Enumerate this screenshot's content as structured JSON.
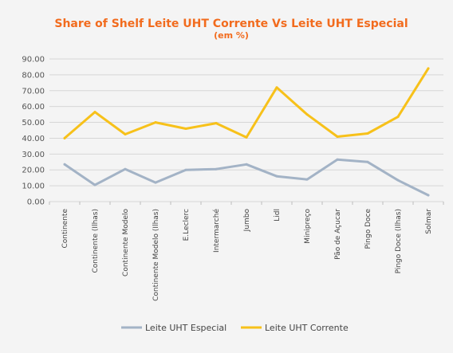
{
  "chart_data": {
    "type": "line",
    "title": "Share of Shelf Leite UHT Corrente Vs Leite UHT Especial",
    "subtitle": "(em %)",
    "xlabel": "",
    "ylabel": "",
    "ylim": [
      0,
      90
    ],
    "yticks": [
      "0.00",
      "10.00",
      "20.00",
      "30.00",
      "40.00",
      "50.00",
      "60.00",
      "70.00",
      "80.00",
      "90.00"
    ],
    "grid": true,
    "legend_position": "bottom",
    "categories": [
      "Continente",
      "Continente (Ilhas)",
      "Continente Modelo",
      "Continente Modelo (Ilhas)",
      "E.Leclerc",
      "Intermarché",
      "Jumbo",
      "Lidl",
      "Minipreço",
      "Pão de Açucar",
      "Pingo Doce",
      "Pingo Doce (Ilhas)",
      "Solmar"
    ],
    "series": [
      {
        "name": "Leite UHT Especial",
        "color": "#a3b3c6",
        "values": [
          23.5,
          10.5,
          20.5,
          12,
          20,
          20.5,
          23.5,
          16,
          14,
          26.5,
          25,
          13.5,
          4
        ]
      },
      {
        "name": "Leite UHT Corrente",
        "color": "#f7c11a",
        "values": [
          40,
          56.5,
          42.5,
          50,
          46,
          49.5,
          40.5,
          72,
          55,
          41,
          43,
          53.5,
          84
        ]
      }
    ]
  }
}
